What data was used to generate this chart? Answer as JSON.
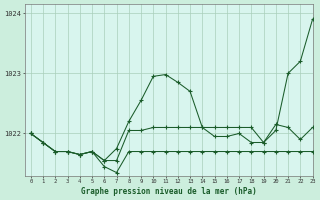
{
  "title": "Graphe pression niveau de la mer (hPa)",
  "bg_color": "#cceedd",
  "plot_bg_color": "#d8f5ee",
  "grid_color": "#aacfbb",
  "line_color": "#1a5c2a",
  "x_values": [
    0,
    1,
    2,
    3,
    4,
    5,
    6,
    7,
    8,
    9,
    10,
    11,
    12,
    13,
    14,
    15,
    16,
    17,
    18,
    19,
    20,
    21,
    22,
    23
  ],
  "series1": [
    1022.0,
    1021.85,
    1021.7,
    1021.7,
    1021.65,
    1021.7,
    1021.55,
    1021.75,
    1022.2,
    1022.55,
    1022.95,
    1022.98,
    1022.85,
    1022.7,
    1022.1,
    1021.95,
    1021.95,
    1022.0,
    1021.85,
    1021.85,
    1022.05,
    1023.0,
    1023.2,
    1023.9
  ],
  "series2": [
    1022.0,
    1021.85,
    1021.7,
    1021.7,
    1021.65,
    1021.7,
    1021.55,
    1021.55,
    1022.05,
    1022.05,
    1022.1,
    1022.1,
    1022.1,
    1022.1,
    1022.1,
    1022.1,
    1022.1,
    1022.1,
    1022.1,
    1021.85,
    1022.15,
    1022.1,
    1021.9,
    1022.1
  ],
  "series3": [
    1022.0,
    1021.85,
    1021.7,
    1021.7,
    1021.65,
    1021.7,
    1021.45,
    1021.35,
    1021.7,
    1021.7,
    1021.7,
    1021.7,
    1021.7,
    1021.7,
    1021.7,
    1021.7,
    1021.7,
    1021.7,
    1021.7,
    1021.7,
    1021.7,
    1021.7,
    1021.7,
    1021.7
  ],
  "ylim_min": 1021.3,
  "ylim_max": 1024.15,
  "yticks": [
    1022,
    1023,
    1024
  ],
  "xlim_min": -0.5,
  "xlim_max": 23.0
}
